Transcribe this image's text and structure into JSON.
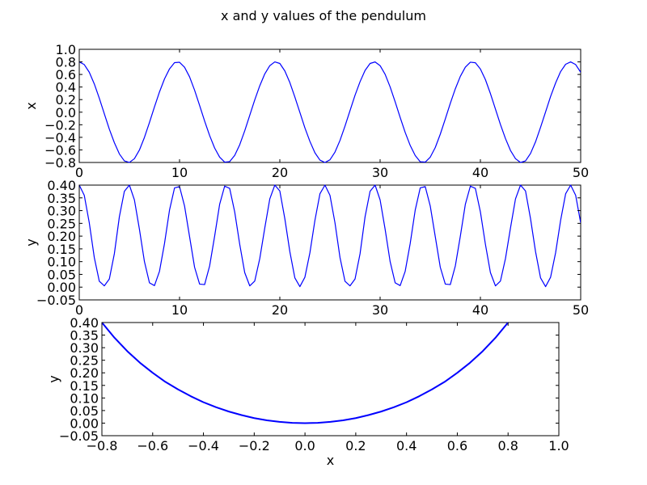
{
  "figure": {
    "title": "x and y values of the pendulum"
  },
  "chart_data": [
    {
      "type": "line",
      "title": "",
      "xlabel": "",
      "ylabel": "x",
      "xlim": [
        0,
        50
      ],
      "ylim": [
        -0.8,
        1.0
      ],
      "xticks": [
        0,
        10,
        20,
        30,
        40,
        50
      ],
      "yticks": [
        -0.8,
        -0.6,
        -0.4,
        -0.2,
        0.0,
        0.2,
        0.4,
        0.6,
        0.8,
        1.0
      ],
      "xtick_labels": [
        "0",
        "10",
        "20",
        "30",
        "40",
        "50"
      ],
      "ytick_labels": [
        "−0.8",
        "−0.6",
        "−0.4",
        "−0.2",
        "0.0",
        "0.2",
        "0.4",
        "0.6",
        "0.8",
        "1.0"
      ],
      "grid": false,
      "color": "#0000ff",
      "series": [
        {
          "x": [
            0,
            0.5,
            1,
            1.5,
            2,
            2.5,
            3,
            3.5,
            4,
            4.5,
            5,
            5.5,
            6,
            6.5,
            7,
            7.5,
            8,
            8.5,
            9,
            9.5,
            10,
            10.5,
            11,
            11.5,
            12,
            12.5,
            13,
            13.5,
            14,
            14.5,
            15,
            15.5,
            16,
            16.5,
            17,
            17.5,
            18,
            18.5,
            19,
            19.5,
            20,
            20.5,
            21,
            21.5,
            22,
            22.5,
            23,
            23.5,
            24,
            24.5,
            25,
            25.5,
            26,
            26.5,
            27,
            27.5,
            28,
            28.5,
            29,
            29.5,
            30,
            30.5,
            31,
            31.5,
            32,
            32.5,
            33,
            33.5,
            34,
            34.5,
            35,
            35.5,
            36,
            36.5,
            37,
            37.5,
            38,
            38.5,
            39,
            39.5,
            40,
            40.5,
            41,
            41.5,
            42,
            42.5,
            43,
            43.5,
            44,
            44.5,
            45,
            45.5,
            46,
            46.5,
            47,
            47.5,
            48,
            48.5,
            49,
            49.5,
            50
          ],
          "y": [
            0.8,
            0.757,
            0.635,
            0.449,
            0.221,
            -0.026,
            -0.27,
            -0.485,
            -0.664,
            -0.775,
            -0.799,
            -0.74,
            -0.602,
            -0.401,
            -0.165,
            0.084,
            0.322,
            0.529,
            0.689,
            0.788,
            0.794,
            0.715,
            0.562,
            0.35,
            0.108,
            -0.141,
            -0.372,
            -0.57,
            -0.716,
            -0.795,
            -0.786,
            -0.687,
            -0.518,
            -0.296,
            -0.05,
            0.196,
            0.42,
            0.609,
            0.74,
            0.8,
            0.775,
            0.656,
            0.471,
            0.24,
            -0.004,
            -0.25,
            -0.465,
            -0.646,
            -0.762,
            -0.8,
            -0.757,
            -0.635,
            -0.449,
            -0.221,
            0.026,
            0.27,
            0.485,
            0.664,
            0.775,
            0.799,
            0.74,
            0.602,
            0.401,
            0.165,
            -0.084,
            -0.322,
            -0.529,
            -0.689,
            -0.788,
            -0.794,
            -0.715,
            -0.562,
            -0.35,
            -0.108,
            0.141,
            0.372,
            0.57,
            0.716,
            0.795,
            0.786,
            0.687,
            0.518,
            0.296,
            0.05,
            -0.196,
            -0.42,
            -0.609,
            -0.74,
            -0.8,
            -0.775,
            -0.656,
            -0.471,
            -0.24,
            0.004,
            0.25,
            0.465,
            0.646,
            0.762,
            0.8,
            0.757,
            0.635
          ]
        }
      ]
    },
    {
      "type": "line",
      "title": "",
      "xlabel": "",
      "ylabel": "y",
      "xlim": [
        0,
        50
      ],
      "ylim": [
        -0.05,
        0.4
      ],
      "xticks": [
        0,
        10,
        20,
        30,
        40,
        50
      ],
      "yticks": [
        -0.05,
        0.0,
        0.05,
        0.1,
        0.15,
        0.2,
        0.25,
        0.3,
        0.35,
        0.4
      ],
      "xtick_labels": [
        "0",
        "10",
        "20",
        "30",
        "40",
        "50"
      ],
      "ytick_labels": [
        "−0.05",
        "0.00",
        "0.05",
        "0.10",
        "0.15",
        "0.20",
        "0.25",
        "0.30",
        "0.35",
        "0.40"
      ],
      "grid": false,
      "color": "#0000ff",
      "series": [
        {
          "x": [
            0,
            0.5,
            1,
            1.5,
            2,
            2.5,
            3,
            3.5,
            4,
            4.5,
            5,
            5.5,
            6,
            6.5,
            7,
            7.5,
            8,
            8.5,
            9,
            9.5,
            10,
            10.5,
            11,
            11.5,
            12,
            12.5,
            13,
            13.5,
            14,
            14.5,
            15,
            15.5,
            16,
            16.5,
            17,
            17.5,
            18,
            18.5,
            19,
            19.5,
            20,
            20.5,
            21,
            21.5,
            22,
            22.5,
            23,
            23.5,
            24,
            24.5,
            25,
            25.5,
            26,
            26.5,
            27,
            27.5,
            28,
            28.5,
            29,
            29.5,
            30,
            30.5,
            31,
            31.5,
            32,
            32.5,
            33,
            33.5,
            34,
            34.5,
            35,
            35.5,
            36,
            36.5,
            37,
            37.5,
            38,
            38.5,
            39,
            39.5,
            40,
            40.5,
            41,
            41.5,
            42,
            42.5,
            43,
            43.5,
            44,
            44.5,
            45,
            45.5,
            46,
            46.5,
            47,
            47.5,
            48,
            48.5,
            49,
            49.5,
            50
          ],
          "y": [
            0.4,
            0.36,
            0.252,
            0.116,
            0.023,
            0.005,
            0.032,
            0.131,
            0.276,
            0.376,
            0.4,
            0.342,
            0.227,
            0.1,
            0.017,
            0.006,
            0.062,
            0.171,
            0.302,
            0.389,
            0.394,
            0.318,
            0.198,
            0.078,
            0.012,
            0.01,
            0.083,
            0.2,
            0.325,
            0.396,
            0.387,
            0.295,
            0.168,
            0.057,
            0.005,
            0.024,
            0.112,
            0.232,
            0.346,
            0.4,
            0.377,
            0.268,
            0.139,
            0.036,
            0.002,
            0.039,
            0.135,
            0.262,
            0.366,
            0.4,
            0.36,
            0.252,
            0.116,
            0.023,
            0.005,
            0.032,
            0.131,
            0.276,
            0.376,
            0.4,
            0.342,
            0.227,
            0.1,
            0.017,
            0.006,
            0.062,
            0.171,
            0.302,
            0.389,
            0.394,
            0.318,
            0.198,
            0.078,
            0.012,
            0.01,
            0.083,
            0.2,
            0.325,
            0.396,
            0.387,
            0.295,
            0.168,
            0.057,
            0.005,
            0.024,
            0.112,
            0.232,
            0.346,
            0.4,
            0.377,
            0.268,
            0.139,
            0.036,
            0.002,
            0.039,
            0.135,
            0.262,
            0.366,
            0.4,
            0.36,
            0.252
          ]
        }
      ]
    },
    {
      "type": "line",
      "title": "",
      "xlabel": "x",
      "ylabel": "y",
      "xlim": [
        -0.8,
        1.0
      ],
      "ylim": [
        -0.05,
        0.4
      ],
      "xticks": [
        -0.8,
        -0.6,
        -0.4,
        -0.2,
        0.0,
        0.2,
        0.4,
        0.6,
        0.8,
        1.0
      ],
      "yticks": [
        -0.05,
        0.0,
        0.05,
        0.1,
        0.15,
        0.2,
        0.25,
        0.3,
        0.35,
        0.4
      ],
      "xtick_labels": [
        "−0.8",
        "−0.6",
        "−0.4",
        "−0.2",
        "0.0",
        "0.2",
        "0.4",
        "0.6",
        "0.8",
        "1.0"
      ],
      "ytick_labels": [
        "−0.05",
        "0.00",
        "0.05",
        "0.10",
        "0.15",
        "0.20",
        "0.25",
        "0.30",
        "0.35",
        "0.40"
      ],
      "grid": false,
      "color": "#0000ff",
      "series": [
        {
          "x": [
            -0.8,
            -0.75,
            -0.7,
            -0.65,
            -0.6,
            -0.55,
            -0.5,
            -0.45,
            -0.4,
            -0.35,
            -0.3,
            -0.25,
            -0.2,
            -0.15,
            -0.1,
            -0.05,
            0.0,
            0.05,
            0.1,
            0.15,
            0.2,
            0.25,
            0.3,
            0.35,
            0.4,
            0.45,
            0.5,
            0.55,
            0.6,
            0.65,
            0.7,
            0.75,
            0.8
          ],
          "y": [
            0.4,
            0.339,
            0.286,
            0.24,
            0.2,
            0.164,
            0.134,
            0.107,
            0.083,
            0.063,
            0.046,
            0.032,
            0.02,
            0.011,
            0.005,
            0.001,
            0.0,
            0.001,
            0.005,
            0.011,
            0.02,
            0.032,
            0.046,
            0.063,
            0.083,
            0.107,
            0.134,
            0.164,
            0.2,
            0.24,
            0.286,
            0.339,
            0.4
          ]
        }
      ]
    }
  ]
}
